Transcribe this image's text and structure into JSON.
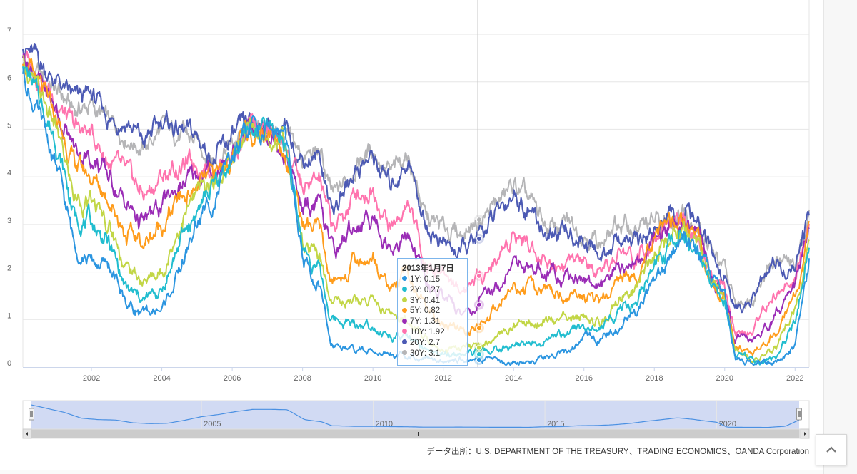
{
  "chart_data": {
    "type": "line",
    "y_ticks": [
      "0",
      "1",
      "2",
      "3",
      "4",
      "5",
      "6",
      "7"
    ],
    "ylim": [
      0,
      7.5
    ],
    "x_ticks": [
      "2002",
      "2004",
      "2006",
      "2008",
      "2010",
      "2012",
      "2014",
      "2016",
      "2018",
      "2020",
      "2022"
    ],
    "xlim": [
      2000.05,
      2022.4
    ],
    "tooltip": {
      "date": "2013年1月7日",
      "rows": [
        "1Y: 0.15",
        "2Y: 0.27",
        "3Y: 0.41",
        "5Y: 0.82",
        "7Y: 1.31",
        "10Y: 1.92",
        "20Y: 2.7",
        "30Y: 3.1"
      ],
      "x": 2013.02
    },
    "series_keyframes_x": [
      2000.05,
      2001.0,
      2001.5,
      2002.0,
      2002.5,
      2003.0,
      2003.5,
      2004.0,
      2004.5,
      2005.0,
      2005.5,
      2006.0,
      2006.5,
      2007.0,
      2007.5,
      2008.0,
      2008.5,
      2008.8,
      2009.0,
      2009.5,
      2010.0,
      2010.5,
      2011.0,
      2011.5,
      2012.0,
      2012.5,
      2013.0,
      2013.5,
      2014.0,
      2014.5,
      2015.0,
      2015.5,
      2016.0,
      2016.5,
      2017.0,
      2017.5,
      2018.0,
      2018.5,
      2018.85,
      2019.3,
      2019.7,
      2020.0,
      2020.3,
      2020.8,
      2021.0,
      2021.5,
      2022.0,
      2022.4
    ],
    "series": [
      {
        "name": "1Y",
        "color": "#2b95e0",
        "values": [
          6.2,
          4.2,
          2.6,
          2.2,
          2.1,
          1.35,
          1.1,
          1.2,
          2.0,
          3.0,
          3.6,
          4.4,
          5.0,
          5.0,
          4.9,
          2.2,
          1.6,
          0.5,
          0.5,
          0.35,
          0.35,
          0.3,
          0.25,
          0.15,
          0.15,
          0.17,
          0.15,
          0.12,
          0.12,
          0.1,
          0.25,
          0.3,
          0.55,
          0.6,
          0.8,
          1.2,
          1.8,
          2.3,
          2.7,
          2.3,
          1.8,
          1.5,
          0.15,
          0.1,
          0.1,
          0.08,
          0.4,
          2.1
        ]
      },
      {
        "name": "2Y",
        "color": "#21bdcf",
        "values": [
          6.4,
          4.8,
          3.2,
          3.0,
          2.6,
          1.6,
          1.4,
          1.6,
          2.6,
          3.3,
          3.8,
          4.4,
          5.0,
          5.0,
          4.8,
          2.5,
          2.0,
          1.0,
          1.0,
          0.9,
          0.9,
          0.6,
          0.6,
          0.3,
          0.25,
          0.27,
          0.27,
          0.35,
          0.45,
          0.5,
          0.65,
          0.7,
          0.85,
          0.8,
          1.2,
          1.4,
          2.2,
          2.6,
          2.8,
          2.4,
          1.7,
          1.4,
          0.25,
          0.15,
          0.12,
          0.2,
          1.0,
          2.7
        ]
      },
      {
        "name": "3Y",
        "color": "#c2d646",
        "values": [
          6.4,
          5.0,
          3.6,
          3.4,
          3.0,
          2.1,
          1.8,
          2.0,
          3.0,
          3.6,
          3.9,
          4.4,
          5.0,
          5.0,
          4.7,
          2.6,
          2.2,
          1.4,
          1.4,
          1.4,
          1.4,
          1.1,
          1.0,
          0.6,
          0.4,
          0.4,
          0.41,
          0.6,
          0.9,
          0.95,
          1.0,
          1.0,
          1.0,
          0.9,
          1.5,
          1.6,
          2.4,
          2.8,
          2.9,
          2.5,
          1.7,
          1.4,
          0.3,
          0.2,
          0.2,
          0.4,
          1.3,
          2.9
        ]
      },
      {
        "name": "5Y",
        "color": "#ff9c1b",
        "values": [
          6.5,
          5.2,
          4.3,
          4.0,
          3.6,
          2.8,
          2.6,
          3.0,
          3.5,
          3.8,
          4.0,
          4.4,
          5.0,
          5.0,
          4.6,
          3.0,
          2.8,
          1.8,
          1.8,
          2.2,
          2.3,
          1.7,
          2.0,
          1.2,
          0.9,
          0.75,
          0.82,
          1.2,
          1.7,
          1.6,
          1.6,
          1.5,
          1.5,
          1.3,
          1.9,
          1.9,
          2.7,
          2.9,
          3.0,
          2.6,
          1.7,
          1.4,
          0.4,
          0.3,
          0.4,
          0.8,
          1.5,
          3.0
        ]
      },
      {
        "name": "7Y",
        "color": "#9a2cb6",
        "values": [
          6.6,
          5.4,
          4.6,
          4.4,
          4.0,
          3.4,
          3.0,
          3.4,
          3.8,
          4.0,
          4.1,
          4.5,
          5.0,
          5.0,
          4.6,
          3.3,
          3.3,
          2.5,
          2.5,
          3.0,
          3.2,
          2.5,
          2.8,
          1.8,
          1.5,
          1.1,
          1.31,
          1.7,
          2.2,
          2.1,
          2.0,
          1.9,
          1.9,
          1.6,
          2.2,
          2.1,
          2.8,
          3.0,
          3.1,
          2.7,
          1.8,
          1.5,
          0.6,
          0.5,
          0.7,
          1.2,
          1.7,
          3.0
        ]
      },
      {
        "name": "10Y",
        "color": "#ff73ae",
        "values": [
          6.6,
          5.6,
          5.0,
          4.9,
          4.3,
          4.0,
          3.6,
          4.0,
          4.2,
          4.3,
          4.2,
          4.5,
          5.0,
          5.0,
          4.7,
          3.7,
          3.9,
          3.0,
          3.0,
          3.6,
          3.8,
          2.9,
          3.4,
          2.2,
          2.0,
          1.6,
          1.92,
          2.2,
          2.9,
          2.6,
          2.2,
          2.2,
          2.2,
          1.8,
          2.4,
          2.3,
          2.9,
          3.0,
          3.15,
          2.7,
          1.8,
          1.6,
          0.7,
          0.7,
          1.1,
          1.6,
          1.8,
          3.0
        ]
      },
      {
        "name": "20Y",
        "color": "#4c5ab4",
        "values": [
          6.8,
          6.0,
          5.6,
          5.7,
          5.2,
          5.2,
          4.7,
          5.2,
          5.0,
          4.8,
          4.4,
          4.8,
          5.1,
          5.1,
          4.9,
          4.4,
          4.4,
          3.4,
          3.4,
          4.2,
          4.4,
          3.8,
          4.4,
          3.0,
          2.6,
          2.4,
          2.7,
          3.2,
          3.7,
          3.3,
          2.7,
          2.8,
          2.7,
          2.3,
          2.7,
          2.6,
          2.9,
          3.1,
          3.25,
          2.9,
          2.2,
          1.9,
          1.2,
          1.4,
          1.7,
          2.2,
          2.0,
          3.2
        ]
      },
      {
        "name": "30Y",
        "color": "#b5b5b7",
        "values": [
          6.4,
          5.8,
          5.4,
          5.5,
          5.1,
          4.9,
          4.6,
          5.0,
          4.9,
          4.7,
          4.4,
          4.7,
          5.0,
          5.0,
          4.8,
          4.4,
          4.5,
          3.6,
          3.6,
          4.3,
          4.6,
          4.0,
          4.5,
          3.1,
          2.9,
          2.8,
          3.1,
          3.4,
          3.8,
          3.4,
          2.9,
          3.0,
          2.9,
          2.6,
          3.0,
          2.9,
          3.0,
          3.1,
          3.35,
          3.0,
          2.3,
          2.0,
          1.3,
          1.5,
          1.9,
          2.3,
          2.1,
          3.2
        ]
      }
    ],
    "navigator": {
      "labels": [
        "2005",
        "2010",
        "2015",
        "2020"
      ],
      "label_x": [
        2005.0,
        2010.0,
        2015.0,
        2020.0
      ],
      "series_name": "1Y"
    }
  },
  "source_text": "データ出所：U.S. DEPARTMENT OF THE TREASURY、TRADING ECONOMICS、OANDA Corporation",
  "icons": {
    "back_to_top": "chevron-up-icon",
    "scroll_left": "arrow-left-icon",
    "scroll_right": "arrow-right-icon"
  }
}
